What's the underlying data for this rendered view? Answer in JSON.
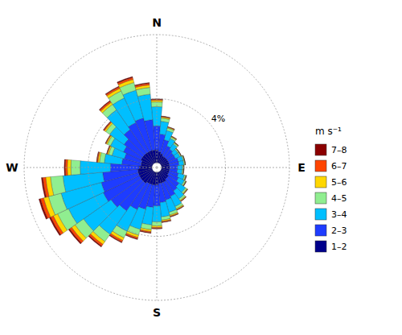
{
  "chart_data": {
    "type": "windrose",
    "stacked": true,
    "grid": true,
    "legend": "right",
    "legend_title": "m s⁻¹",
    "x": [
      0,
      10,
      20,
      30,
      40,
      50,
      60,
      70,
      80,
      90,
      100,
      110,
      120,
      130,
      140,
      150,
      160,
      170,
      180,
      190,
      200,
      210,
      220,
      230,
      240,
      250,
      260,
      270,
      280,
      290,
      300,
      310,
      320,
      330,
      340,
      350
    ],
    "xlim": [
      0,
      360
    ],
    "xticks": [
      {
        "value": 0,
        "label": "N"
      },
      {
        "value": 90,
        "label": "E"
      },
      {
        "value": 180,
        "label": "S"
      },
      {
        "value": 270,
        "label": "W"
      }
    ],
    "ylim": [
      0,
      8
    ],
    "yticks": [
      {
        "value": 4,
        "label": "4%"
      }
    ],
    "series": [
      {
        "name": "1–2",
        "color": "#00008B",
        "values": [
          0.8,
          0.7,
          0.6,
          0.5,
          0.5,
          0.5,
          0.5,
          0.5,
          0.5,
          0.5,
          0.5,
          0.5,
          0.5,
          0.6,
          0.6,
          0.7,
          0.7,
          0.7,
          0.8,
          0.8,
          0.8,
          0.8,
          0.9,
          0.9,
          0.9,
          0.9,
          0.9,
          0.8,
          0.7,
          0.7,
          0.8,
          0.8,
          0.8,
          0.8,
          0.8,
          0.8
        ]
      },
      {
        "name": "2–3",
        "color": "#1E3CFF",
        "values": [
          1.5,
          1.1,
          0.9,
          0.7,
          0.6,
          0.5,
          0.5,
          0.6,
          0.6,
          0.5,
          0.5,
          0.6,
          0.7,
          0.8,
          0.9,
          1.0,
          1.1,
          1.2,
          1.3,
          1.4,
          1.6,
          1.8,
          2.1,
          2.3,
          2.5,
          2.4,
          2.2,
          1.8,
          1.2,
          1.1,
          1.2,
          1.4,
          1.8,
          2.0,
          2.1,
          1.9
        ]
      },
      {
        "name": "3–4",
        "color": "#00BFFF",
        "values": [
          1.2,
          0.8,
          0.6,
          0.5,
          0.4,
          0.3,
          0.3,
          0.3,
          0.3,
          0.3,
          0.3,
          0.4,
          0.4,
          0.5,
          0.6,
          0.7,
          0.8,
          0.9,
          1.0,
          1.1,
          1.3,
          1.5,
          1.8,
          2.1,
          2.4,
          2.6,
          2.5,
          1.9,
          1.1,
          0.8,
          0.9,
          1.1,
          1.5,
          1.7,
          1.8,
          1.6
        ]
      },
      {
        "name": "4–5",
        "color": "#90EE90",
        "values": [
          0.3,
          0.2,
          0.15,
          0.1,
          0.08,
          0.07,
          0.07,
          0.07,
          0.07,
          0.07,
          0.07,
          0.08,
          0.09,
          0.1,
          0.12,
          0.15,
          0.18,
          0.2,
          0.25,
          0.3,
          0.38,
          0.45,
          0.55,
          0.65,
          0.75,
          0.82,
          0.78,
          0.58,
          0.3,
          0.22,
          0.22,
          0.3,
          0.42,
          0.48,
          0.5,
          0.42
        ]
      },
      {
        "name": "5–6",
        "color": "#FFD700",
        "values": [
          0.1,
          0.07,
          0.05,
          0.04,
          0.03,
          0.02,
          0.02,
          0.02,
          0.02,
          0.02,
          0.02,
          0.03,
          0.03,
          0.04,
          0.05,
          0.06,
          0.07,
          0.08,
          0.1,
          0.12,
          0.15,
          0.18,
          0.22,
          0.26,
          0.3,
          0.32,
          0.3,
          0.22,
          0.1,
          0.08,
          0.08,
          0.1,
          0.15,
          0.18,
          0.2,
          0.16
        ]
      },
      {
        "name": "6–7",
        "color": "#FF4500",
        "values": [
          0.06,
          0.04,
          0.03,
          0.02,
          0.015,
          0.01,
          0.01,
          0.01,
          0.01,
          0.01,
          0.01,
          0.015,
          0.015,
          0.02,
          0.025,
          0.03,
          0.04,
          0.05,
          0.06,
          0.07,
          0.09,
          0.11,
          0.13,
          0.16,
          0.18,
          0.2,
          0.18,
          0.13,
          0.06,
          0.04,
          0.04,
          0.06,
          0.09,
          0.1,
          0.12,
          0.1
        ]
      },
      {
        "name": "7–8",
        "color": "#8B0000",
        "values": [
          0.03,
          0.02,
          0.015,
          0.01,
          0.008,
          0.005,
          0.005,
          0.005,
          0.005,
          0.005,
          0.005,
          0.008,
          0.008,
          0.01,
          0.012,
          0.015,
          0.02,
          0.025,
          0.03,
          0.035,
          0.045,
          0.055,
          0.065,
          0.08,
          0.09,
          0.1,
          0.09,
          0.065,
          0.03,
          0.02,
          0.02,
          0.03,
          0.045,
          0.05,
          0.06,
          0.05
        ]
      }
    ]
  }
}
